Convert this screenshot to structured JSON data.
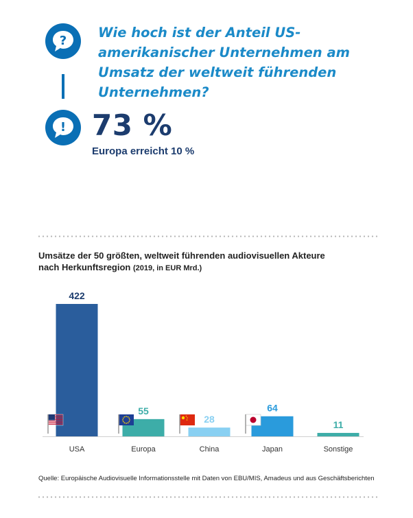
{
  "question": "Wie hoch ist der Anteil US-\namerikanischer Unternehmen am\nUmsatz der weltweit führenden\nUnternehmen?",
  "answer": "73 %",
  "answer_sub": "Europa erreicht 10 %",
  "icons": {
    "question": "question-bubble-icon",
    "answer": "exclamation-bubble-icon"
  },
  "colors": {
    "accent": "#0a6fb5",
    "question_text": "#1b8ac8",
    "answer_text": "#1c3c6e"
  },
  "chart_data": {
    "type": "bar",
    "title": "Umsätze der 50 größten, weltweit führenden audiovisuellen Akteure nach Herkunftsregion",
    "title_line1": "Umsätze der 50 größten, weltweit führenden audiovisuellen Akteure",
    "title_line2": "nach Herkunftsregion",
    "title_note": "(2019,  in EUR Mrd.)",
    "categories": [
      "USA",
      "Europa",
      "China",
      "Japan",
      "Sonstige"
    ],
    "values": [
      422,
      55,
      28,
      64,
      11
    ],
    "bar_colors": [
      "#2a5d9c",
      "#3dada8",
      "#89d0f2",
      "#2a9bdc",
      "#3dada8"
    ],
    "label_colors": [
      "#1c3c6e",
      "#3dada8",
      "#89d0f2",
      "#2a9bdc",
      "#3dada8"
    ],
    "flags": [
      "us-flag-icon",
      "eu-flag-icon",
      "china-flag-icon",
      "japan-flag-icon",
      null
    ],
    "ylim": [
      0,
      422
    ],
    "grid": false,
    "legend": "none"
  },
  "source": "Quelle: Europäische Audiovisuelle Informationsstelle mit Daten von EBU/MIS, Amadeus und aus Geschäftsberichten"
}
